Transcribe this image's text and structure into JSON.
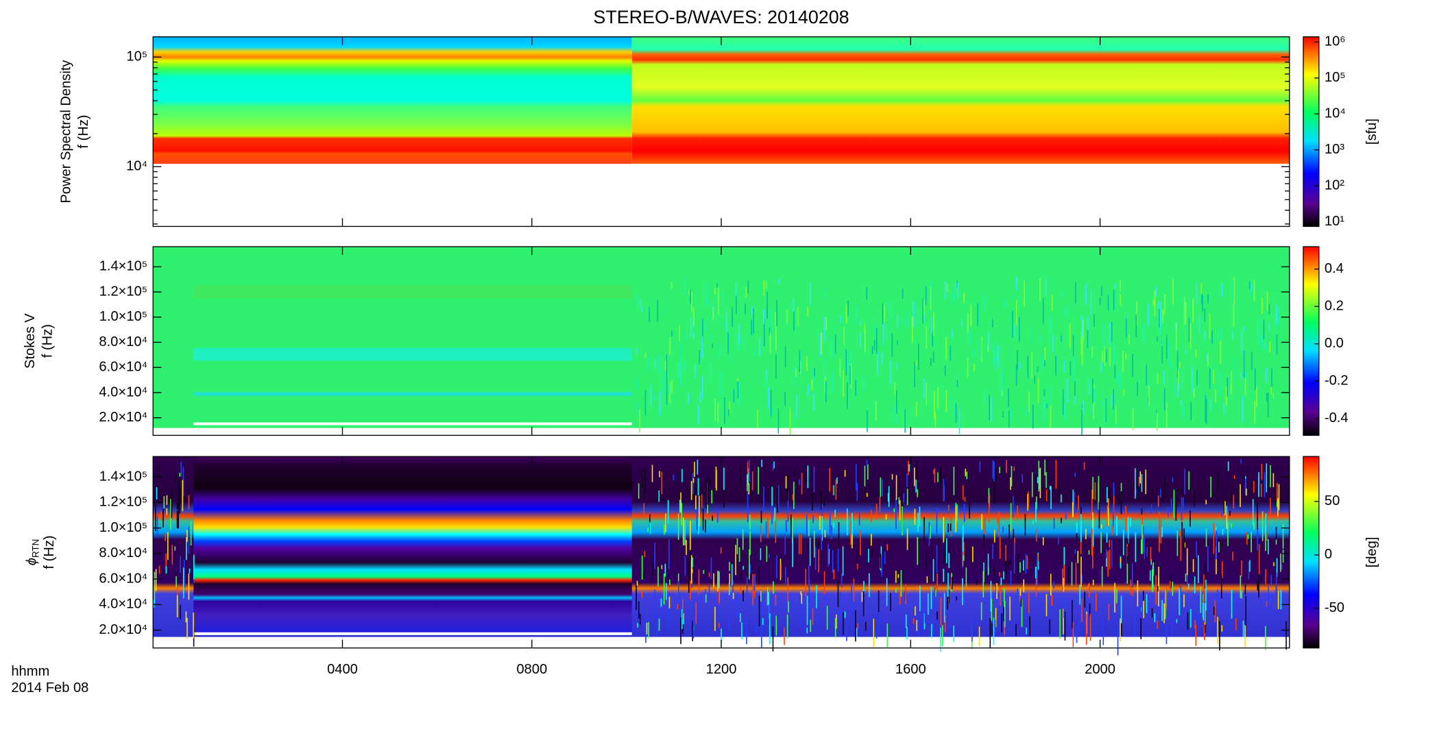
{
  "chart_data": [
    {
      "type": "spectrogram",
      "title": "STEREO-B/WAVES: 20140208",
      "ylabel": [
        "Power Spectral Density",
        "f (Hz)"
      ],
      "yscale": "log",
      "ylim": [
        2850,
        153000
      ],
      "yticks": [
        {
          "value": 10000,
          "label": "10⁴"
        },
        {
          "value": 100000,
          "label": "10⁵"
        }
      ],
      "xlim": [
        0,
        24
      ],
      "colorbar": {
        "scale": "log",
        "lim": [
          7.4,
          1400000
        ],
        "label": "[sfu]",
        "ticks": [
          {
            "value": 10,
            "label": "10¹"
          },
          {
            "value": 100,
            "label": "10²"
          },
          {
            "value": 1000,
            "label": "10³"
          },
          {
            "value": 10000,
            "label": "10⁴"
          },
          {
            "value": 100000,
            "label": "10⁵"
          },
          {
            "value": 1000000,
            "label": "10⁶"
          }
        ]
      }
    },
    {
      "type": "spectrogram",
      "ylabel": [
        "Stokes V",
        "f (Hz)"
      ],
      "yscale": "linear",
      "ylim": [
        6000,
        156000
      ],
      "yticks": [
        {
          "value": 20000,
          "label": "2.0×10⁴"
        },
        {
          "value": 40000,
          "label": "4.0×10⁴"
        },
        {
          "value": 60000,
          "label": "6.0×10⁴"
        },
        {
          "value": 80000,
          "label": "8.0×10⁴"
        },
        {
          "value": 100000,
          "label": "1.0×10⁵"
        },
        {
          "value": 120000,
          "label": "1.2×10⁵"
        },
        {
          "value": 140000,
          "label": "1.4×10⁵"
        }
      ],
      "xlim": [
        0,
        24
      ],
      "colorbar": {
        "scale": "linear",
        "lim": [
          -0.49,
          0.52
        ],
        "ticks": [
          -0.4,
          -0.2,
          {
            "value": 0,
            "label": "0.0"
          },
          0.2,
          0.4
        ]
      }
    },
    {
      "type": "spectrogram",
      "ylabel": [
        {
          "symbol": "ϕ",
          "subscript": "RTN"
        },
        "f (Hz)"
      ],
      "yscale": "linear",
      "ylim": [
        6000,
        156000
      ],
      "yticks": [
        {
          "value": 20000,
          "label": "2.0×10⁴"
        },
        {
          "value": 40000,
          "label": "4.0×10⁴"
        },
        {
          "value": 60000,
          "label": "6.0×10⁴"
        },
        {
          "value": 80000,
          "label": "8.0×10⁴"
        },
        {
          "value": 100000,
          "label": "1.0×10⁵"
        },
        {
          "value": 120000,
          "label": "1.2×10⁵"
        },
        {
          "value": 140000,
          "label": "1.4×10⁵"
        }
      ],
      "xlim": [
        0,
        24
      ],
      "xticks": [
        {
          "value": 4,
          "label": "0400"
        },
        {
          "value": 8,
          "label": "0800"
        },
        {
          "value": 12,
          "label": "1200"
        },
        {
          "value": 16,
          "label": "1600"
        },
        {
          "value": 20,
          "label": "2000"
        }
      ],
      "xlabel": [
        "hhmm",
        "2014 Feb 08"
      ],
      "colorbar": {
        "scale": "linear",
        "lim": [
          -87,
          92
        ],
        "label": "[deg]",
        "ticks": [
          -50,
          0,
          50
        ]
      }
    }
  ]
}
